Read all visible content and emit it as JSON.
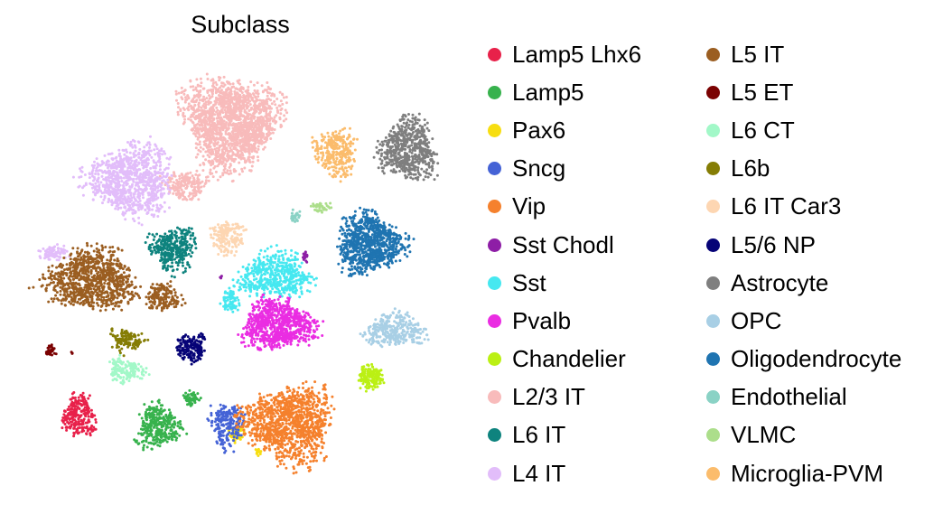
{
  "chart_data": {
    "type": "scatter",
    "title": "Subclass",
    "xlabel": "",
    "ylabel": "",
    "grid": false,
    "legend_position": "right",
    "series": [
      {
        "name": "Lamp5 Lhx6",
        "color": "#e8214a",
        "clusters": [
          {
            "x": 88,
            "y": 460,
            "rx": 22,
            "ry": 28,
            "n": 240
          }
        ]
      },
      {
        "name": "Lamp5",
        "color": "#37b24d",
        "clusters": [
          {
            "x": 175,
            "y": 472,
            "rx": 28,
            "ry": 30,
            "n": 320
          },
          {
            "x": 212,
            "y": 440,
            "rx": 12,
            "ry": 10,
            "n": 60
          }
        ]
      },
      {
        "name": "Pax6",
        "color": "#f7de11",
        "clusters": [
          {
            "x": 262,
            "y": 480,
            "rx": 10,
            "ry": 10,
            "n": 60
          },
          {
            "x": 286,
            "y": 500,
            "rx": 5,
            "ry": 5,
            "n": 14
          }
        ]
      },
      {
        "name": "Sncg",
        "color": "#4563d6",
        "clusters": [
          {
            "x": 252,
            "y": 470,
            "rx": 24,
            "ry": 30,
            "n": 200
          }
        ]
      },
      {
        "name": "Vip",
        "color": "#f5812d",
        "clusters": [
          {
            "x": 320,
            "y": 470,
            "rx": 60,
            "ry": 50,
            "n": 1100
          }
        ]
      },
      {
        "name": "Sst Chodl",
        "color": "#8e1ea6",
        "clusters": [
          {
            "x": 338,
            "y": 283,
            "rx": 3,
            "ry": 8,
            "n": 16
          },
          {
            "x": 245,
            "y": 307,
            "rx": 2,
            "ry": 2,
            "n": 4
          }
        ]
      },
      {
        "name": "Sst",
        "color": "#46e8f0",
        "clusters": [
          {
            "x": 305,
            "y": 305,
            "rx": 48,
            "ry": 30,
            "n": 520
          },
          {
            "x": 255,
            "y": 333,
            "rx": 12,
            "ry": 16,
            "n": 80
          }
        ]
      },
      {
        "name": "Pvalb",
        "color": "#ea2de2",
        "clusters": [
          {
            "x": 308,
            "y": 360,
            "rx": 48,
            "ry": 32,
            "n": 800
          }
        ]
      },
      {
        "name": "Chandelier",
        "color": "#bbf014",
        "clusters": [
          {
            "x": 410,
            "y": 418,
            "rx": 16,
            "ry": 17,
            "n": 160
          }
        ]
      },
      {
        "name": "L2/3 IT",
        "color": "#f8bbbb",
        "clusters": [
          {
            "x": 255,
            "y": 135,
            "rx": 62,
            "ry": 60,
            "n": 1800
          },
          {
            "x": 205,
            "y": 205,
            "rx": 28,
            "ry": 20,
            "n": 200
          }
        ]
      },
      {
        "name": "L6 IT",
        "color": "#0e837e",
        "clusters": [
          {
            "x": 192,
            "y": 275,
            "rx": 30,
            "ry": 28,
            "n": 330
          }
        ]
      },
      {
        "name": "L4 IT",
        "color": "#e2bdfa",
        "clusters": [
          {
            "x": 145,
            "y": 200,
            "rx": 55,
            "ry": 48,
            "n": 950
          },
          {
            "x": 60,
            "y": 280,
            "rx": 20,
            "ry": 10,
            "n": 80
          }
        ]
      },
      {
        "name": "L5 IT",
        "color": "#9b5e21",
        "clusters": [
          {
            "x": 100,
            "y": 310,
            "rx": 60,
            "ry": 40,
            "n": 900
          },
          {
            "x": 180,
            "y": 330,
            "rx": 24,
            "ry": 20,
            "n": 170
          }
        ]
      },
      {
        "name": "L5 ET",
        "color": "#7b0202",
        "clusters": [
          {
            "x": 55,
            "y": 388,
            "rx": 8,
            "ry": 9,
            "n": 30
          },
          {
            "x": 80,
            "y": 390,
            "rx": 2,
            "ry": 2,
            "n": 3
          }
        ]
      },
      {
        "name": "L6 CT",
        "color": "#a2f8c8",
        "clusters": [
          {
            "x": 140,
            "y": 410,
            "rx": 24,
            "ry": 16,
            "n": 150
          }
        ]
      },
      {
        "name": "L6b",
        "color": "#857d05",
        "clusters": [
          {
            "x": 140,
            "y": 377,
            "rx": 22,
            "ry": 16,
            "n": 120
          }
        ]
      },
      {
        "name": "L6 IT Car3",
        "color": "#fdd6b2",
        "clusters": [
          {
            "x": 252,
            "y": 263,
            "rx": 24,
            "ry": 22,
            "n": 180
          }
        ]
      },
      {
        "name": "L5/6 NP",
        "color": "#060377",
        "clusters": [
          {
            "x": 212,
            "y": 385,
            "rx": 20,
            "ry": 20,
            "n": 180
          }
        ]
      },
      {
        "name": "Astrocyte",
        "color": "#7f7f7f",
        "clusters": [
          {
            "x": 452,
            "y": 165,
            "rx": 38,
            "ry": 40,
            "n": 620
          }
        ]
      },
      {
        "name": "OPC",
        "color": "#a8cfe5",
        "clusters": [
          {
            "x": 437,
            "y": 365,
            "rx": 38,
            "ry": 22,
            "n": 320
          }
        ]
      },
      {
        "name": "Oligodendrocyte",
        "color": "#1f74b1",
        "clusters": [
          {
            "x": 410,
            "y": 270,
            "rx": 44,
            "ry": 38,
            "n": 850
          }
        ]
      },
      {
        "name": "Endothelial",
        "color": "#8ad2c5",
        "clusters": [
          {
            "x": 327,
            "y": 240,
            "rx": 7,
            "ry": 10,
            "n": 30
          }
        ]
      },
      {
        "name": "VLMC",
        "color": "#acde8b",
        "clusters": [
          {
            "x": 355,
            "y": 230,
            "rx": 14,
            "ry": 7,
            "n": 40
          }
        ]
      },
      {
        "name": "Microglia-PVM",
        "color": "#fbbc6c",
        "clusters": [
          {
            "x": 372,
            "y": 168,
            "rx": 28,
            "ry": 30,
            "n": 300
          }
        ]
      }
    ]
  }
}
